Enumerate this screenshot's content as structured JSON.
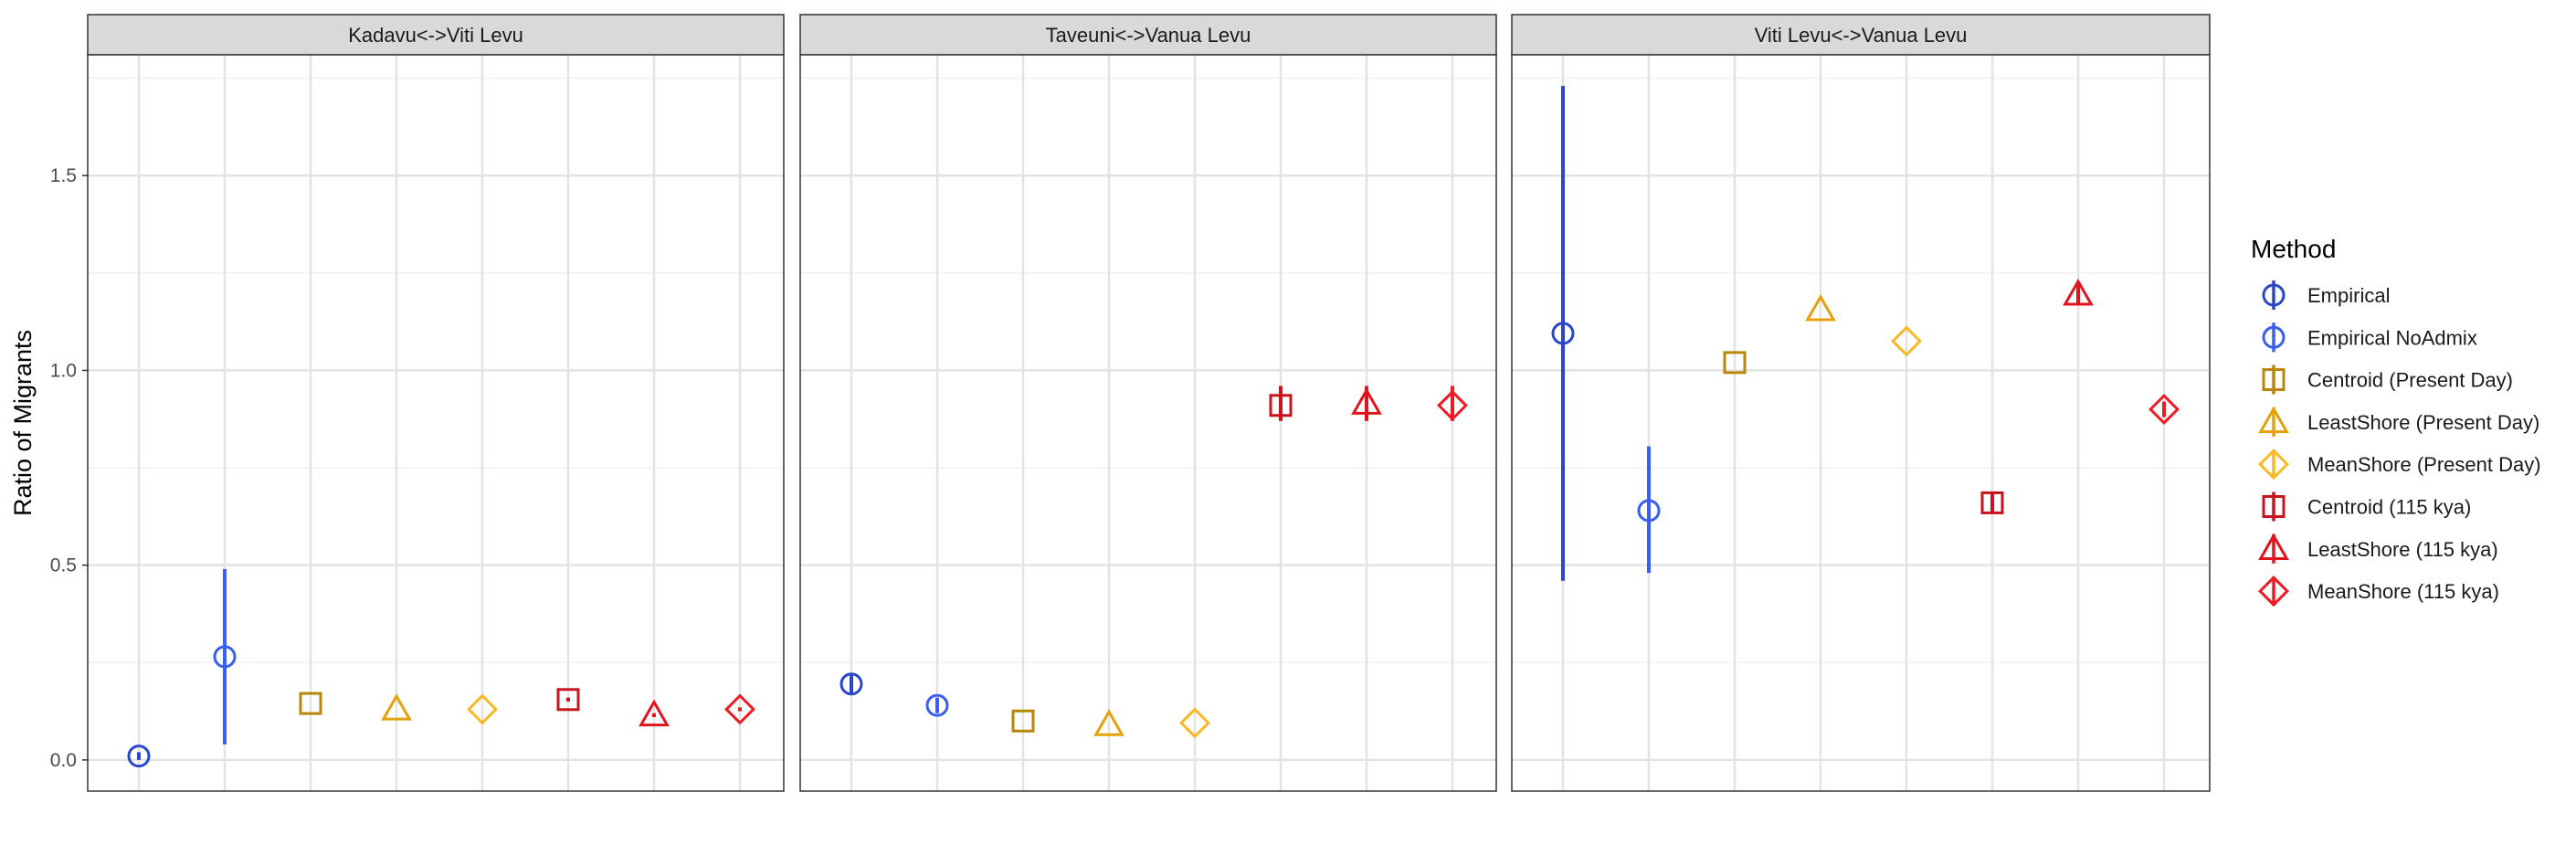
{
  "chart_data": {
    "type": "scatter",
    "ylabel": "Ratio of Migrants",
    "ylim": [
      -0.08,
      1.81
    ],
    "yticks": [
      0.0,
      0.5,
      1.0,
      1.5
    ],
    "ytick_labels": [
      "0.0",
      "0.5",
      "1.0",
      "1.5"
    ],
    "grid": true,
    "legend": {
      "title": "Method",
      "position": "right",
      "entries": [
        {
          "label": "Empirical",
          "shape": "circle",
          "color": "#2A47C9"
        },
        {
          "label": "Empirical NoAdmix",
          "shape": "circle",
          "color": "#3A5EF0"
        },
        {
          "label": "Centroid (Present Day)",
          "shape": "square",
          "color": "#B8860B"
        },
        {
          "label": "LeastShore (Present Day)",
          "shape": "triangle",
          "color": "#E5A00D"
        },
        {
          "label": "MeanShore (Present Day)",
          "shape": "diamond",
          "color": "#F8B925"
        },
        {
          "label": "Centroid (115 kya)",
          "shape": "square",
          "color": "#C8141E"
        },
        {
          "label": "LeastShore (115 kya)",
          "shape": "triangle",
          "color": "#E0141E"
        },
        {
          "label": "MeanShore (115 kya)",
          "shape": "diamond",
          "color": "#F01A24"
        }
      ]
    },
    "facets": [
      {
        "title": "Kadavu<->Viti Levu",
        "points": [
          {
            "method": 0,
            "y": 0.01,
            "lo": 0.0,
            "hi": 0.02
          },
          {
            "method": 1,
            "y": 0.265,
            "lo": 0.04,
            "hi": 0.49
          },
          {
            "method": 2,
            "y": 0.145,
            "lo": 0.145,
            "hi": 0.145
          },
          {
            "method": 3,
            "y": 0.13,
            "lo": 0.13,
            "hi": 0.13
          },
          {
            "method": 4,
            "y": 0.13,
            "lo": 0.13,
            "hi": 0.13
          },
          {
            "method": 5,
            "y": 0.155,
            "lo": 0.15,
            "hi": 0.16
          },
          {
            "method": 6,
            "y": 0.115,
            "lo": 0.11,
            "hi": 0.12
          },
          {
            "method": 7,
            "y": 0.13,
            "lo": 0.125,
            "hi": 0.135
          }
        ]
      },
      {
        "title": "Taveuni<->Vanua Levu",
        "points": [
          {
            "method": 0,
            "y": 0.195,
            "lo": 0.17,
            "hi": 0.22
          },
          {
            "method": 1,
            "y": 0.14,
            "lo": 0.12,
            "hi": 0.16
          },
          {
            "method": 2,
            "y": 0.1,
            "lo": 0.1,
            "hi": 0.1
          },
          {
            "method": 3,
            "y": 0.09,
            "lo": 0.09,
            "hi": 0.09
          },
          {
            "method": 4,
            "y": 0.095,
            "lo": 0.095,
            "hi": 0.095
          },
          {
            "method": 5,
            "y": 0.91,
            "lo": 0.87,
            "hi": 0.96
          },
          {
            "method": 6,
            "y": 0.915,
            "lo": 0.87,
            "hi": 0.96
          },
          {
            "method": 7,
            "y": 0.91,
            "lo": 0.87,
            "hi": 0.96
          }
        ]
      },
      {
        "title": "Viti Levu<->Vanua Levu",
        "points": [
          {
            "method": 0,
            "y": 1.095,
            "lo": 0.46,
            "hi": 1.73
          },
          {
            "method": 1,
            "y": 0.64,
            "lo": 0.48,
            "hi": 0.805
          },
          {
            "method": 2,
            "y": 1.02,
            "lo": 1.02,
            "hi": 1.02
          },
          {
            "method": 3,
            "y": 1.155,
            "lo": 1.155,
            "hi": 1.155
          },
          {
            "method": 4,
            "y": 1.075,
            "lo": 1.075,
            "hi": 1.075
          },
          {
            "method": 5,
            "y": 0.66,
            "lo": 0.635,
            "hi": 0.685
          },
          {
            "method": 6,
            "y": 1.195,
            "lo": 1.17,
            "hi": 1.22
          },
          {
            "method": 7,
            "y": 0.9,
            "lo": 0.88,
            "hi": 0.92
          }
        ]
      }
    ]
  }
}
